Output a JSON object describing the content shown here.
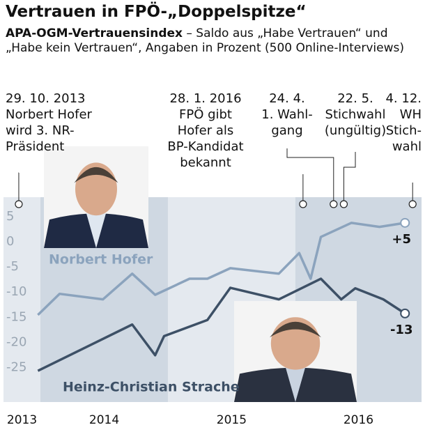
{
  "chart_data": {
    "type": "line",
    "title": "Vertrauen in FPÖ-„Doppelspitze“",
    "subtitle_bold": "APA-OGM-Vertrauensindex",
    "subtitle": " – Saldo aus „Habe Vertrauen“ und „Habe kein Vertrauen“, Angaben in Prozent (500 Online-Interviews)",
    "xlim": [
      2013.71,
      2016.99
    ],
    "xticks": [
      2013,
      2014,
      2015,
      2016
    ],
    "ylim": [
      -30.6,
      10.1
    ],
    "yticks": [
      5,
      0,
      -5,
      -10,
      -15,
      -20,
      -25
    ],
    "shaded_years": true,
    "series": [
      {
        "name": "Norbert Hofer",
        "color": "#8ba3bd",
        "x": [
          2013.98,
          2014.15,
          2014.49,
          2014.72,
          2014.9,
          2015.17,
          2015.31,
          2015.49,
          2015.87,
          2016.03,
          2016.12,
          2016.2,
          2016.44,
          2016.66,
          2016.86
        ],
        "values": [
          -13.3,
          -9.1,
          -10.2,
          -5.1,
          -9.3,
          -6.1,
          -6.1,
          -4.0,
          -5.1,
          -1.0,
          -6.1,
          2.2,
          5,
          4.2,
          5
        ],
        "value_labels": [
          null,
          null,
          null,
          null,
          null,
          null,
          null,
          null,
          null,
          null,
          null,
          null,
          null,
          null,
          "+5"
        ]
      },
      {
        "name": "Heinz-Christian Strache",
        "color": "#3d5066",
        "x": [
          2013.98,
          2014.72,
          2014.9,
          2014.97,
          2015.31,
          2015.49,
          2015.87,
          2016.2,
          2016.36,
          2016.47,
          2016.69,
          2016.86
        ],
        "values": [
          -24.4,
          -15.2,
          -21.3,
          -17.5,
          -14.3,
          -7.9,
          -10.2,
          -6.1,
          -10.2,
          -8.0,
          -10.2,
          -13
        ],
        "value_labels": [
          null,
          null,
          null,
          null,
          null,
          null,
          null,
          null,
          null,
          null,
          null,
          "-13"
        ]
      }
    ],
    "annotations": [
      {
        "x": 2013.83,
        "lines": [
          "29. 10. 2013",
          "Norbert Hofer",
          "wird 3. NR-",
          "Präsident"
        ]
      },
      {
        "x": 2016.06,
        "lines": [
          "28. 1. 2016",
          "FPÖ gibt",
          "Hofer als",
          "BP-Kandidat",
          "bekannt"
        ]
      },
      {
        "x": 2016.3,
        "lines": [
          "24. 4.",
          "1. Wahl-",
          "gang"
        ]
      },
      {
        "x": 2016.38,
        "lines": [
          "22. 5.",
          "Stichwahl",
          "(ungültig)"
        ]
      },
      {
        "x": 2016.92,
        "lines": [
          "4. 12.",
          "WH",
          "Stich-",
          "wahl"
        ]
      }
    ]
  }
}
